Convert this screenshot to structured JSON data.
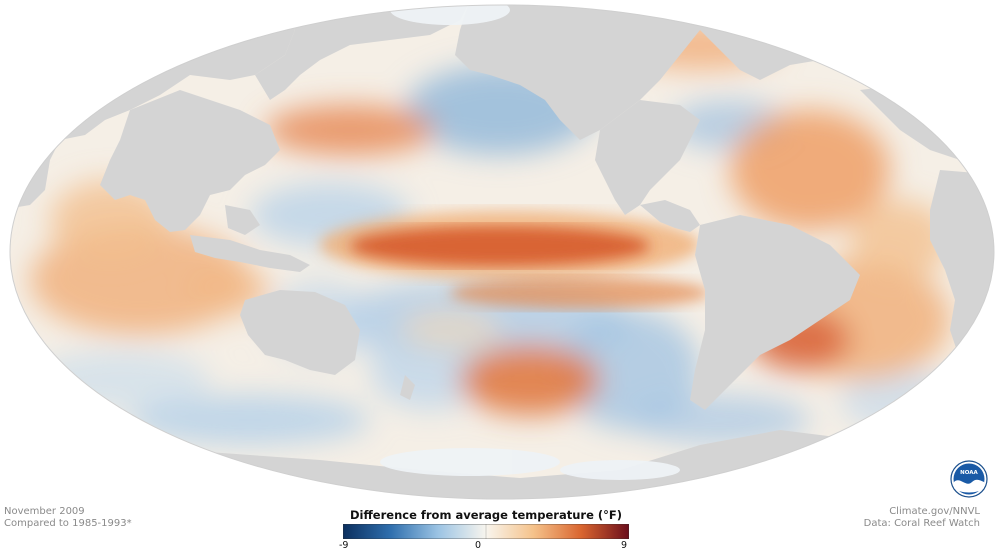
{
  "map": {
    "variable": "sea surface temperature anomaly",
    "colors": {
      "land": "#d4d4d4",
      "ice": "#eef2f6",
      "warm": "#e58a4e",
      "strong_warm": "#c8482a",
      "cool": "#8fb6da",
      "neutral": "#f7f2ea"
    }
  },
  "footer": {
    "date": "November 2009",
    "baseline": "Compared to 1985-1993*",
    "credit": "Climate.gov/NNVL",
    "source": "Data: Coral Reef Watch"
  },
  "legend": {
    "title": "Difference from average temperature (°F)",
    "min": "-9",
    "mid": "0",
    "max": "9",
    "gradient": [
      "#0b2f5e",
      "#2f6fae",
      "#9cc4e4",
      "#f8f5ee",
      "#f5c28a",
      "#d9652f",
      "#6b0e1c"
    ]
  },
  "logo": {
    "text": "NOAA",
    "icon": "noaa-logo-icon"
  }
}
